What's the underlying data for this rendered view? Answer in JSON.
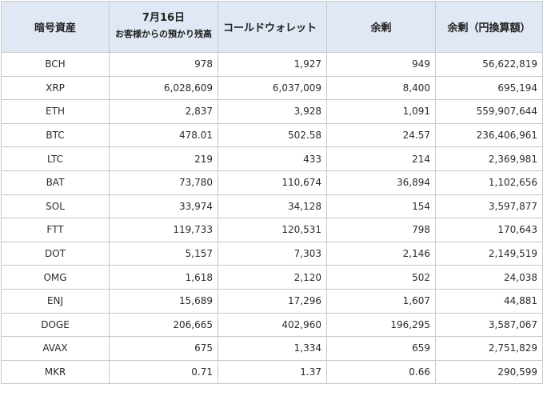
{
  "table": {
    "headers": {
      "asset": "暗号資産",
      "date": "7月16日",
      "customer": "お客様からの預かり残高",
      "cold_wallet": "コールドウォレット",
      "surplus": "余剰",
      "surplus_yen": "余剰（円換算額）"
    },
    "rows": [
      {
        "asset": "BCH",
        "customer": "978",
        "cold": "1,927",
        "surplus": "949",
        "yen": "56,622,819"
      },
      {
        "asset": "XRP",
        "customer": "6,028,609",
        "cold": "6,037,009",
        "surplus": "8,400",
        "yen": "695,194"
      },
      {
        "asset": "ETH",
        "customer": "2,837",
        "cold": "3,928",
        "surplus": "1,091",
        "yen": "559,907,644"
      },
      {
        "asset": "BTC",
        "customer": "478.01",
        "cold": "502.58",
        "surplus": "24.57",
        "yen": "236,406,961"
      },
      {
        "asset": "LTC",
        "customer": "219",
        "cold": "433",
        "surplus": "214",
        "yen": "2,369,981"
      },
      {
        "asset": "BAT",
        "customer": "73,780",
        "cold": "110,674",
        "surplus": "36,894",
        "yen": "1,102,656"
      },
      {
        "asset": "SOL",
        "customer": "33,974",
        "cold": "34,128",
        "surplus": "154",
        "yen": "3,597,877"
      },
      {
        "asset": "FTT",
        "customer": "119,733",
        "cold": "120,531",
        "surplus": "798",
        "yen": "170,643"
      },
      {
        "asset": "DOT",
        "customer": "5,157",
        "cold": "7,303",
        "surplus": "2,146",
        "yen": "2,149,519"
      },
      {
        "asset": "OMG",
        "customer": "1,618",
        "cold": "2,120",
        "surplus": "502",
        "yen": "24,038"
      },
      {
        "asset": "ENJ",
        "customer": "15,689",
        "cold": "17,296",
        "surplus": "1,607",
        "yen": "44,881"
      },
      {
        "asset": "DOGE",
        "customer": "206,665",
        "cold": "402,960",
        "surplus": "196,295",
        "yen": "3,587,067"
      },
      {
        "asset": "AVAX",
        "customer": "675",
        "cold": "1,334",
        "surplus": "659",
        "yen": "2,751,829"
      },
      {
        "asset": "MKR",
        "customer": "0.71",
        "cold": "1.37",
        "surplus": "0.66",
        "yen": "290,599"
      }
    ]
  },
  "colors": {
    "header_background": "#dfe8f4",
    "border": "#c8c8c8"
  }
}
